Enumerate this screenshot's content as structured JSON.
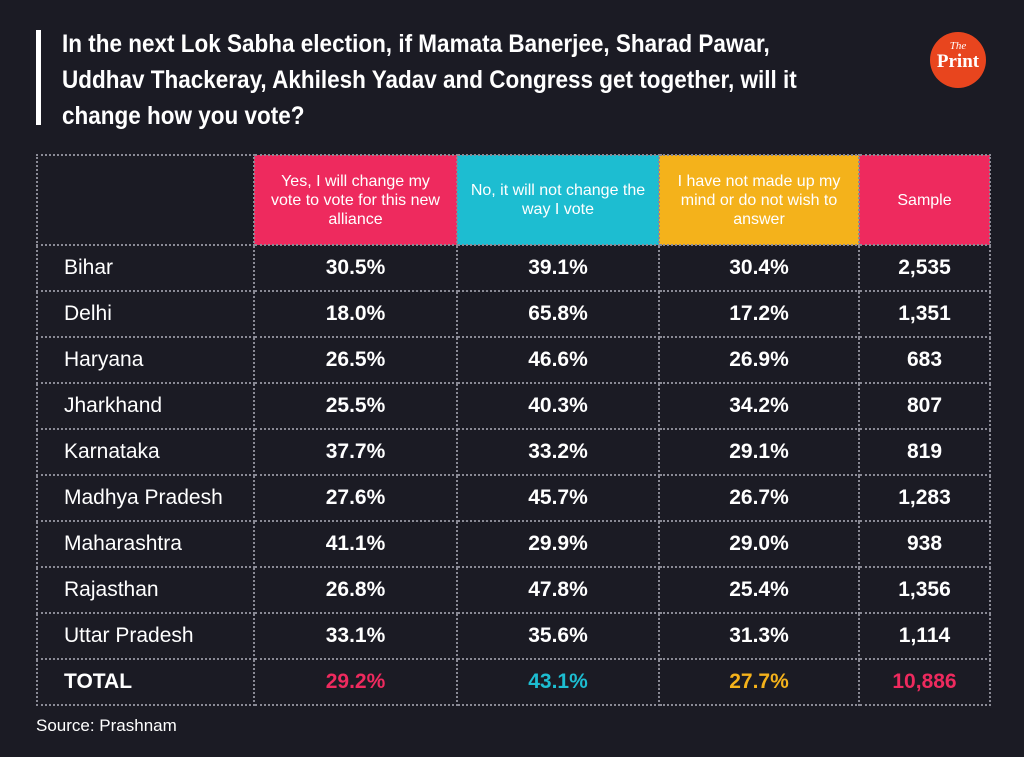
{
  "title": "In the next Lok Sabha election, if Mamata Banerjee, Sharad Pawar, Uddhav Thackeray, Akhilesh Yadav and Congress get together, will it change how you vote?",
  "logo": {
    "the": "The",
    "print": "Print"
  },
  "source": "Source: Prashnam",
  "colors": {
    "yes": "#ee2a5e",
    "no": "#1dbdd1",
    "undecided": "#f4b21b",
    "sample": "#ee2a5e",
    "background": "#1b1b24"
  },
  "chart_data": {
    "type": "table",
    "title": "In the next Lok Sabha election, if Mamata Banerjee, Sharad Pawar, Uddhav Thackeray, Akhilesh Yadav and Congress get together, will it change how you vote?",
    "columns": [
      "Yes, I will change my vote to vote for this new alliance",
      "No, it will not change the way I vote",
      "I have not made up my mind or do not wish to answer",
      "Sample"
    ],
    "rows": [
      {
        "state": "Bihar",
        "yes": "30.5%",
        "no": "39.1%",
        "undecided": "30.4%",
        "sample": "2,535"
      },
      {
        "state": "Delhi",
        "yes": "18.0%",
        "no": "65.8%",
        "undecided": "17.2%",
        "sample": "1,351"
      },
      {
        "state": "Haryana",
        "yes": "26.5%",
        "no": "46.6%",
        "undecided": "26.9%",
        "sample": "683"
      },
      {
        "state": "Jharkhand",
        "yes": "25.5%",
        "no": "40.3%",
        "undecided": "34.2%",
        "sample": "807"
      },
      {
        "state": "Karnataka",
        "yes": "37.7%",
        "no": "33.2%",
        "undecided": "29.1%",
        "sample": "819"
      },
      {
        "state": "Madhya Pradesh",
        "yes": "27.6%",
        "no": "45.7%",
        "undecided": "26.7%",
        "sample": "1,283"
      },
      {
        "state": "Maharashtra",
        "yes": "41.1%",
        "no": "29.9%",
        "undecided": "29.0%",
        "sample": "938"
      },
      {
        "state": "Rajasthan",
        "yes": "26.8%",
        "no": "47.8%",
        "undecided": "25.4%",
        "sample": "1,356"
      },
      {
        "state": "Uttar Pradesh",
        "yes": "33.1%",
        "no": "35.6%",
        "undecided": "31.3%",
        "sample": "1,114"
      }
    ],
    "total": {
      "state": "TOTAL",
      "yes": "29.2%",
      "no": "43.1%",
      "undecided": "27.7%",
      "sample": "10,886"
    }
  }
}
